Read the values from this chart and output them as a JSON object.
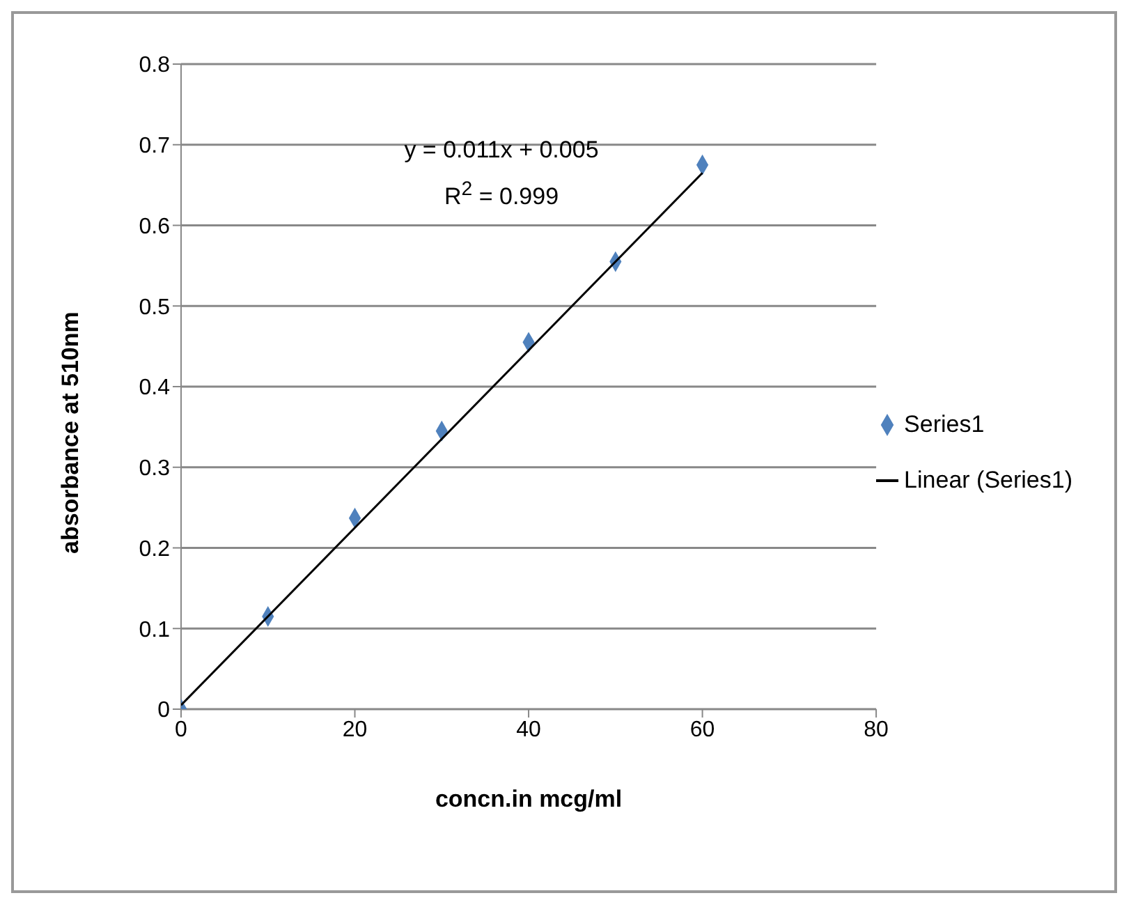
{
  "chart_data": {
    "type": "scatter",
    "xlabel": "concn.in mcg/ml",
    "ylabel": "absorbance at 510nm",
    "xlim": [
      0,
      80
    ],
    "xticks": [
      0,
      20,
      40,
      60,
      80
    ],
    "ylim": [
      0,
      0.8
    ],
    "yticks": [
      0,
      0.1,
      0.2,
      0.3,
      0.4,
      0.5,
      0.6,
      0.7,
      0.8
    ],
    "grid": "y",
    "legend": "right",
    "annotations": [
      "y = 0.011x + 0.005",
      "R$^{2}$ = 0.999"
    ],
    "series": [
      {
        "name": "Series1",
        "marker": "diamond",
        "color": "#4f81bd",
        "x": [
          0,
          10,
          20,
          30,
          40,
          50,
          60
        ],
        "values": [
          0,
          0.115,
          0.237,
          0.345,
          0.455,
          0.555,
          0.675
        ]
      },
      {
        "name": "Linear (Series1)",
        "type": "line",
        "line_style": "solid",
        "marker": "none",
        "color": "#000000",
        "x": [
          0,
          60
        ],
        "values": [
          0.005,
          0.665
        ]
      }
    ]
  }
}
